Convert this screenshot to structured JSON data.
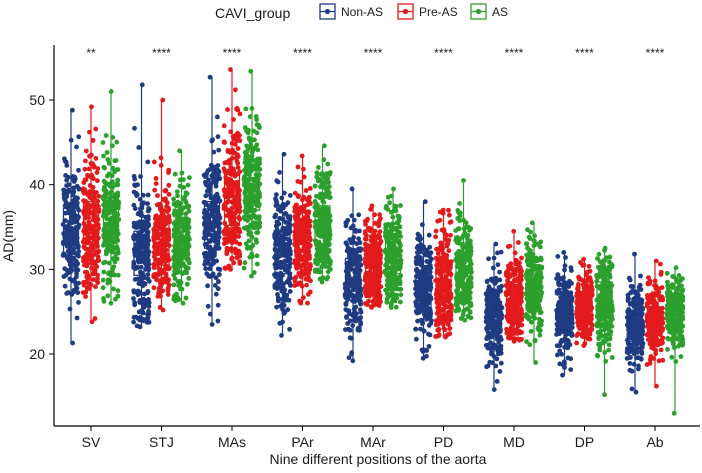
{
  "chart_data": {
    "type": "box",
    "title": "",
    "xlabel": "Nine different positions of the aorta",
    "ylabel": "AD(mm)",
    "ylim": [
      11.5,
      56.5
    ],
    "yticks": [
      20,
      30,
      40,
      50
    ],
    "legend": {
      "title": "CAVI_group",
      "position": "top",
      "entries": [
        "Non-AS",
        "Pre-AS",
        "AS"
      ]
    },
    "categories": [
      "SV",
      "STJ",
      "MAs",
      "PAr",
      "MAr",
      "PD",
      "MD",
      "DP",
      "Ab"
    ],
    "significance": [
      "**",
      "****",
      "****",
      "****",
      "****",
      "****",
      "****",
      "****",
      "****"
    ],
    "series": [
      {
        "name": "Non-AS",
        "color": "#1f3b82",
        "boxes": [
          {
            "min": 21.3,
            "q1": 31.5,
            "median": 34.5,
            "q3": 37.2,
            "max": 48.8
          },
          {
            "min": 23.2,
            "q1": 29.3,
            "median": 32.0,
            "q3": 34.5,
            "max": 51.8
          },
          {
            "min": 23.5,
            "q1": 32.5,
            "median": 35.5,
            "q3": 38.0,
            "max": 52.7
          },
          {
            "min": 22.2,
            "q1": 29.5,
            "median": 31.5,
            "q3": 34.5,
            "max": 43.6
          },
          {
            "min": 19.2,
            "q1": 27.0,
            "median": 29.0,
            "q3": 31.3,
            "max": 39.5
          },
          {
            "min": 19.5,
            "q1": 25.5,
            "median": 27.5,
            "q3": 29.5,
            "max": 38.0
          },
          {
            "min": 15.8,
            "q1": 22.5,
            "median": 24.5,
            "q3": 26.2,
            "max": 33.0
          },
          {
            "min": 17.5,
            "q1": 22.8,
            "median": 24.5,
            "q3": 26.0,
            "max": 32.0
          },
          {
            "min": 15.5,
            "q1": 21.5,
            "median": 23.0,
            "q3": 24.7,
            "max": 31.8
          }
        ]
      },
      {
        "name": "Pre-AS",
        "color": "#e31a1c",
        "boxes": [
          {
            "min": 23.8,
            "q1": 32.5,
            "median": 35.0,
            "q3": 38.0,
            "max": 49.2
          },
          {
            "min": 25.2,
            "q1": 30.5,
            "median": 33.5,
            "q3": 35.5,
            "max": 50.0
          },
          {
            "min": 30.0,
            "q1": 35.2,
            "median": 38.0,
            "q3": 41.2,
            "max": 53.6
          },
          {
            "min": 26.0,
            "q1": 31.5,
            "median": 33.5,
            "q3": 35.5,
            "max": 43.4
          },
          {
            "min": 25.5,
            "q1": 28.5,
            "median": 30.5,
            "q3": 32.3,
            "max": 37.5
          },
          {
            "min": 22.0,
            "q1": 26.5,
            "median": 28.5,
            "q3": 31.0,
            "max": 37.0
          },
          {
            "min": 21.5,
            "q1": 24.5,
            "median": 26.5,
            "q3": 28.0,
            "max": 34.5
          },
          {
            "min": 21.0,
            "q1": 24.5,
            "median": 25.5,
            "q3": 27.0,
            "max": 31.2
          },
          {
            "min": 16.2,
            "q1": 22.5,
            "median": 24.0,
            "q3": 25.5,
            "max": 31.0
          }
        ]
      },
      {
        "name": "AS",
        "color": "#2ca02c",
        "boxes": [
          {
            "min": 26.0,
            "q1": 33.5,
            "median": 35.5,
            "q3": 38.5,
            "max": 51.0
          },
          {
            "min": 26.0,
            "q1": 31.5,
            "median": 33.5,
            "q3": 35.8,
            "max": 44.0
          },
          {
            "min": 29.2,
            "q1": 37.0,
            "median": 39.5,
            "q3": 42.2,
            "max": 53.4
          },
          {
            "min": 28.5,
            "q1": 33.0,
            "median": 35.0,
            "q3": 37.5,
            "max": 44.6
          },
          {
            "min": 25.5,
            "q1": 29.5,
            "median": 31.5,
            "q3": 33.5,
            "max": 39.5
          },
          {
            "min": 24.0,
            "q1": 28.0,
            "median": 29.5,
            "q3": 32.0,
            "max": 40.5
          },
          {
            "min": 19.0,
            "q1": 26.2,
            "median": 28.0,
            "q3": 29.8,
            "max": 35.5
          },
          {
            "min": 15.2,
            "q1": 24.5,
            "median": 26.0,
            "q3": 28.5,
            "max": 32.5
          },
          {
            "min": 13.0,
            "q1": 23.5,
            "median": 25.0,
            "q3": 26.5,
            "max": 30.2
          }
        ]
      }
    ]
  }
}
